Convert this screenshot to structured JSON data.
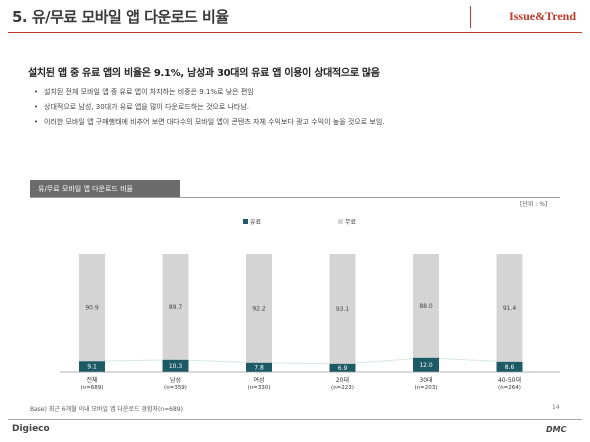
{
  "header": {
    "title": "5. 유/무료 모바일 앱 다운로드 비율",
    "brand": "Issue&Trend"
  },
  "headline": "설치된 앱 중 유료 앱의 비율은 9.1%, 남성과 30대의 유료 앱 이용이 상대적으로 많음",
  "bullets": [
    "설치된 전체 모바일 앱 중 유료 앱이 차지하는 비중은 9.1%로 낮은 편임",
    "상대적으로 남성, 30대가 유료 앱을 많이 다운로드하는 것으로 나타남.",
    "이러한 모바일 앱 구매행태에 비추어 보면 대다수의 모바일 앱이 콘텐츠 자체 수익보다 광고 수익이 높을 것으로 보임."
  ],
  "chart_box_title": "유/무료 모바일 앱 다운로드 비율",
  "unit_label": "[단위 : %]",
  "chart_data": {
    "type": "bar",
    "stacked": true,
    "percent_stacked": true,
    "categories": [
      "전체",
      "남성",
      "여성",
      "20대",
      "30대",
      "40-50대"
    ],
    "category_sublabels": [
      "(n=689)",
      "(n=359)",
      "(n=330)",
      "(n=223)",
      "(n=203)",
      "(n=264)"
    ],
    "series": [
      {
        "name": "유료",
        "color": "#1c5a66",
        "values": [
          9.1,
          10.3,
          7.8,
          6.9,
          12.0,
          8.6
        ]
      },
      {
        "name": "무료",
        "color": "#d4d4d4",
        "values": [
          90.9,
          89.7,
          92.2,
          93.1,
          88.0,
          91.4
        ]
      }
    ],
    "ylim": [
      0,
      100
    ],
    "grid": false,
    "legend_position": "top"
  },
  "base_note": "Base) 최근 6개월 이내 모바일 앱 다운로드 경험자(n=689)",
  "page_number": "14",
  "footer": {
    "left": "Digieco",
    "right": "DMC"
  }
}
